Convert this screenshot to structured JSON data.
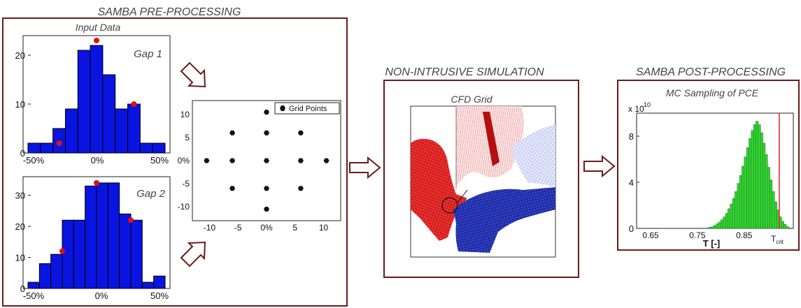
{
  "sections": {
    "pre_title": "SAMBA PRE-PROCESSING",
    "sim_title": "NON-INTRUSIVE SIMULATION",
    "post_title": "SAMBA POST-PROCESSING"
  },
  "pre": {
    "input_data_label": "Input Data",
    "gap1_label": "Gap 1",
    "gap2_label": "Gap 2",
    "grid_legend": "Grid Points"
  },
  "sim": {
    "cfd_label": "CFD Grid"
  },
  "post": {
    "mc_label": "MC Sampling of PCE",
    "exponent_base": "x 10",
    "exponent_power": "10",
    "xlabel": "T [-]",
    "tcrit_base": "T",
    "tcrit_sub": "crit"
  },
  "colors": {
    "frame": "#6b1a1a",
    "bar_blue": "#0a14e0",
    "marker_red": "#e01010",
    "bar_green": "#33d633",
    "crit_line": "#e02020",
    "cfd_red": "#d81818",
    "cfd_blue": "#1a28a8"
  },
  "chart_data": [
    {
      "type": "bar",
      "title": "Gap 1",
      "x_tick_labels": [
        "-50%",
        "0%",
        "50%"
      ],
      "y_ticks": [
        0,
        10,
        20
      ],
      "ylim": [
        0,
        24
      ],
      "values": [
        2,
        2,
        5,
        9,
        21,
        22,
        16,
        9,
        10,
        2,
        2
      ],
      "markers": [
        {
          "bin": 2,
          "value": 2
        },
        {
          "bin": 5,
          "value": 23
        },
        {
          "bin": 8,
          "value": 10
        }
      ]
    },
    {
      "type": "bar",
      "title": "Gap 2",
      "x_tick_labels": [
        "-50%",
        "0%",
        "50%"
      ],
      "y_ticks": [
        0,
        10,
        20,
        30
      ],
      "ylim": [
        0,
        36
      ],
      "values": [
        2,
        8,
        11,
        22,
        22,
        33,
        34,
        34,
        24,
        22,
        2,
        4
      ],
      "markers": [
        {
          "bin": 2.5,
          "value": 12
        },
        {
          "bin": 5.5,
          "value": 34
        },
        {
          "bin": 8.5,
          "value": 22
        }
      ]
    },
    {
      "type": "scatter",
      "legend": "Grid Points",
      "x_tick_labels": [
        "-10",
        "-5",
        "0%",
        "5",
        "10"
      ],
      "y_tick_labels": [
        "10",
        "5",
        "0%",
        "-5",
        "-10"
      ],
      "xlim": [
        -13,
        13
      ],
      "ylim": [
        -13,
        13
      ],
      "points": [
        {
          "x": -10.5,
          "y": 0
        },
        {
          "x": -6,
          "y": 6
        },
        {
          "x": -6,
          "y": 0
        },
        {
          "x": -6,
          "y": -6
        },
        {
          "x": 0,
          "y": 10.5
        },
        {
          "x": 0,
          "y": 6
        },
        {
          "x": 0,
          "y": 0
        },
        {
          "x": 0,
          "y": -6
        },
        {
          "x": 0,
          "y": -10.5
        },
        {
          "x": 6,
          "y": 6
        },
        {
          "x": 6,
          "y": 0
        },
        {
          "x": 6,
          "y": -6
        },
        {
          "x": 10.5,
          "y": 0
        }
      ]
    },
    {
      "type": "bar",
      "title": "MC Sampling of PCE",
      "xlabel": "T [-]",
      "x_tick_labels": [
        "0.65",
        "0.75",
        "0.85"
      ],
      "x_tick_values": [
        0.65,
        0.75,
        0.85
      ],
      "y_ticks": [
        0,
        4,
        8
      ],
      "xlim": [
        0.62,
        0.955
      ],
      "ylim": [
        0,
        10
      ],
      "bin_start": 0.77,
      "bin_width": 0.005,
      "values": [
        0.05,
        0.1,
        0.15,
        0.25,
        0.4,
        0.55,
        0.75,
        1.0,
        1.3,
        1.7,
        2.1,
        2.6,
        3.2,
        3.9,
        4.6,
        5.4,
        6.2,
        7.0,
        7.8,
        8.5,
        9.0,
        9.3,
        9.0,
        8.3,
        7.4,
        6.4,
        5.3,
        4.2,
        3.2,
        2.3,
        1.6,
        1.0,
        0.6,
        0.35,
        0.15,
        0.05
      ],
      "critical_value": 0.925,
      "critical_label": "Tcrit"
    }
  ]
}
